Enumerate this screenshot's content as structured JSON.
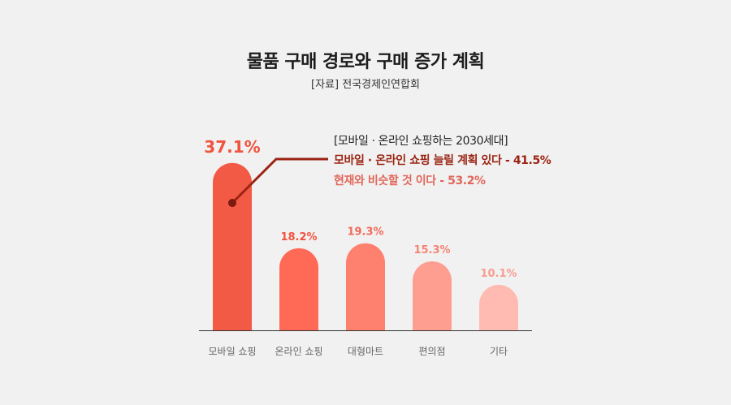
{
  "title": "물품 구매 경로와 구매 증가 계획",
  "source": "[자료] 전국경제인연합회",
  "annotation": {
    "heading": "[모바일 · 온라인 쇼핑하는 2030세대]",
    "line1": "모바일 · 온라인 쇼핑 늘릴 계획 있다 - 41.5%",
    "line2": "현재와 비슷할 것 이다 - 53.2%",
    "line1_color": "#9b2413",
    "line2_color": "#e0675a"
  },
  "colors": {
    "background": "#f1f1f1",
    "bars": [
      "#f35a45",
      "#fe6a55",
      "#fe806e",
      "#fe9e91",
      "#ffbbb1"
    ],
    "label_text": [
      "#f0533e",
      "#f0533e",
      "#f26a5a",
      "#f58474",
      "#f79d91"
    ],
    "leader_line": "#9b2413",
    "axis": "#333333"
  },
  "chart_data": {
    "type": "bar",
    "title": "물품 구매 경로와 구매 증가 계획",
    "categories": [
      "모바일 쇼핑",
      "온라인 쇼핑",
      "대형마트",
      "편의점",
      "기타"
    ],
    "values": [
      37.1,
      18.2,
      19.3,
      15.3,
      10.1
    ],
    "data_labels": [
      "37.1%",
      "18.2%",
      "19.3%",
      "15.3%",
      "10.1%"
    ],
    "unit": "%",
    "ylim": [
      0,
      41.2
    ],
    "grid": false,
    "legend": "none"
  }
}
